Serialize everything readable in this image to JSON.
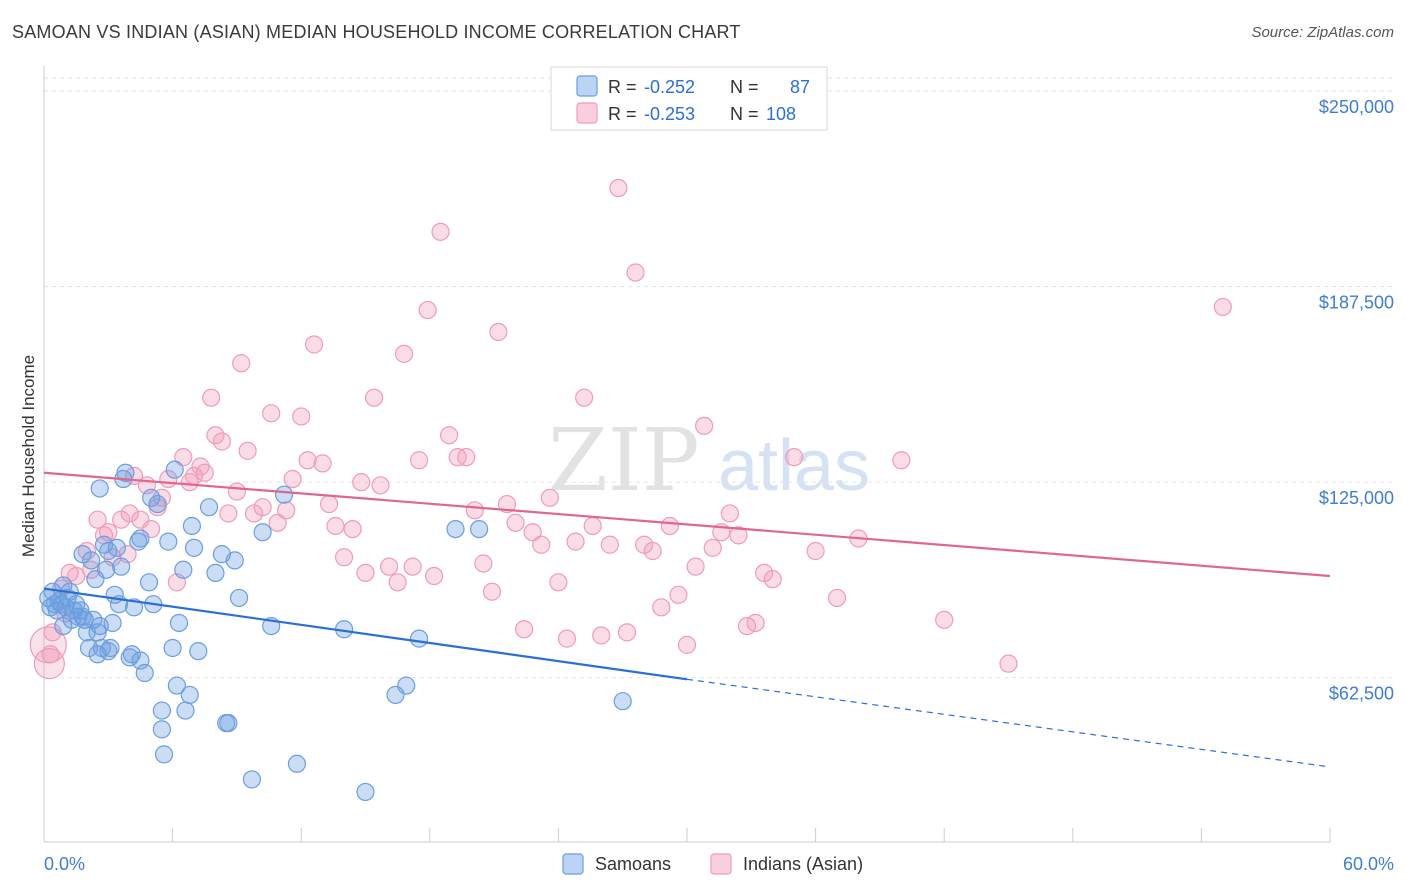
{
  "header": {
    "title": "SAMOAN VS INDIAN (ASIAN) MEDIAN HOUSEHOLD INCOME CORRELATION CHART",
    "source": "Source: ZipAtlas.com"
  },
  "colors": {
    "samoans": "#6a9ee0",
    "indians": "#f09bb8",
    "samoans_line": "#2a6fd6",
    "indians_line": "#e0668f",
    "tick_text": "#3f7dd0"
  },
  "legend": {
    "rows": [
      {
        "r_label": "R = ",
        "r_value": "-0.252",
        "n_label": "N = ",
        "n_value": "87"
      },
      {
        "r_label": "R = ",
        "r_value": "-0.253",
        "n_label": "N = ",
        "n_value": "108"
      }
    ]
  },
  "watermark": {
    "zip": "ZIP",
    "atlas": "atlas"
  },
  "chart_data": {
    "type": "scatter",
    "title": "SAMOAN VS INDIAN (ASIAN) MEDIAN HOUSEHOLD INCOME CORRELATION CHART",
    "xlabel": "",
    "ylabel": "Median Household Income",
    "xlim": [
      0,
      60
    ],
    "ylim": [
      10000,
      258000
    ],
    "x_tick_labels": [
      "0.0%",
      "60.0%"
    ],
    "y_ticks": [
      62500,
      125000,
      187500,
      250000
    ],
    "y_tick_labels": [
      "$62,500",
      "$125,000",
      "$187,500",
      "$250,000"
    ],
    "grid": true,
    "legend_position": "top-center",
    "series": [
      {
        "name": "Samoans",
        "r": -0.252,
        "n": 87,
        "trend": {
          "x0": 0,
          "y0": 91000,
          "x1": 30,
          "y1": 62000,
          "dashed_to_x": 60,
          "dashed_y": 34000
        },
        "points": [
          [
            0.2,
            88000
          ],
          [
            0.3,
            85000
          ],
          [
            0.4,
            90000
          ],
          [
            0.5,
            86000
          ],
          [
            0.6,
            84000
          ],
          [
            0.7,
            87000
          ],
          [
            0.8,
            86000
          ],
          [
            0.9,
            92000
          ],
          [
            1.0,
            85000
          ],
          [
            1.1,
            88000
          ],
          [
            1.2,
            90000
          ],
          [
            1.3,
            81000
          ],
          [
            1.4,
            84000
          ],
          [
            1.5,
            86000
          ],
          [
            1.6,
            82000
          ],
          [
            1.7,
            84000
          ],
          [
            1.8,
            82000
          ],
          [
            1.9,
            81000
          ],
          [
            2.0,
            77000
          ],
          [
            2.1,
            72000
          ],
          [
            2.2,
            100000
          ],
          [
            2.3,
            81000
          ],
          [
            2.4,
            94000
          ],
          [
            2.5,
            77000
          ],
          [
            2.6,
            79000
          ],
          [
            2.7,
            72000
          ],
          [
            2.8,
            105000
          ],
          [
            2.9,
            97000
          ],
          [
            3.0,
            103000
          ],
          [
            3.1,
            72000
          ],
          [
            3.2,
            80000
          ],
          [
            3.3,
            89000
          ],
          [
            3.4,
            104000
          ],
          [
            3.5,
            86000
          ],
          [
            3.6,
            98000
          ],
          [
            3.7,
            126000
          ],
          [
            3.8,
            128000
          ],
          [
            4.0,
            69000
          ],
          [
            4.1,
            70000
          ],
          [
            4.2,
            85000
          ],
          [
            4.4,
            106000
          ],
          [
            4.5,
            107000
          ],
          [
            4.7,
            64000
          ],
          [
            4.9,
            93000
          ],
          [
            5.0,
            120000
          ],
          [
            5.1,
            86000
          ],
          [
            5.3,
            118000
          ],
          [
            5.5,
            46000
          ],
          [
            5.6,
            38000
          ],
          [
            5.8,
            106000
          ],
          [
            6.0,
            72000
          ],
          [
            6.1,
            129000
          ],
          [
            6.2,
            60000
          ],
          [
            6.3,
            80000
          ],
          [
            6.5,
            97000
          ],
          [
            6.6,
            52000
          ],
          [
            6.8,
            57000
          ],
          [
            6.9,
            111000
          ],
          [
            7.0,
            104000
          ],
          [
            7.2,
            71000
          ],
          [
            7.7,
            117000
          ],
          [
            8.0,
            96000
          ],
          [
            8.3,
            102000
          ],
          [
            8.5,
            48000
          ],
          [
            8.6,
            48000
          ],
          [
            8.9,
            100000
          ],
          [
            9.1,
            88000
          ],
          [
            9.7,
            30000
          ],
          [
            10.2,
            109000
          ],
          [
            10.6,
            79000
          ],
          [
            11.2,
            121000
          ],
          [
            11.8,
            35000
          ],
          [
            14.0,
            78000
          ],
          [
            15.0,
            26000
          ],
          [
            16.4,
            57000
          ],
          [
            16.9,
            60000
          ],
          [
            17.5,
            75000
          ],
          [
            19.2,
            110000
          ],
          [
            20.3,
            110000
          ],
          [
            27.0,
            55000
          ],
          [
            2.5,
            70000
          ],
          [
            3.0,
            71000
          ],
          [
            4.5,
            68000
          ],
          [
            5.5,
            52000
          ],
          [
            1.8,
            102000
          ],
          [
            0.9,
            79000
          ],
          [
            2.6,
            123000
          ]
        ]
      },
      {
        "name": "Indians (Asian)",
        "r": -0.253,
        "n": 108,
        "trend": {
          "x0": 0,
          "y0": 128000,
          "x1": 60,
          "y1": 95000
        },
        "points": [
          [
            0.3,
            70000
          ],
          [
            0.4,
            77000
          ],
          [
            0.8,
            91000
          ],
          [
            1.0,
            83000
          ],
          [
            1.2,
            96000
          ],
          [
            1.5,
            95000
          ],
          [
            2.0,
            103000
          ],
          [
            2.2,
            97000
          ],
          [
            2.5,
            113000
          ],
          [
            2.8,
            108000
          ],
          [
            3.0,
            109000
          ],
          [
            3.2,
            101000
          ],
          [
            3.6,
            113000
          ],
          [
            3.9,
            102000
          ],
          [
            4.0,
            115000
          ],
          [
            4.2,
            127000
          ],
          [
            4.5,
            113000
          ],
          [
            4.8,
            124000
          ],
          [
            5.0,
            110000
          ],
          [
            5.3,
            117000
          ],
          [
            5.5,
            120000
          ],
          [
            5.8,
            126000
          ],
          [
            6.2,
            93000
          ],
          [
            6.5,
            133000
          ],
          [
            6.8,
            125000
          ],
          [
            7.0,
            127000
          ],
          [
            7.3,
            130000
          ],
          [
            7.5,
            128000
          ],
          [
            7.8,
            152000
          ],
          [
            8.0,
            140000
          ],
          [
            8.3,
            138000
          ],
          [
            8.6,
            115000
          ],
          [
            9.0,
            122000
          ],
          [
            9.2,
            163000
          ],
          [
            9.5,
            135000
          ],
          [
            9.8,
            115000
          ],
          [
            10.2,
            117000
          ],
          [
            10.6,
            147000
          ],
          [
            10.9,
            112000
          ],
          [
            11.3,
            116000
          ],
          [
            11.6,
            126000
          ],
          [
            12.0,
            146000
          ],
          [
            12.3,
            132000
          ],
          [
            12.6,
            169000
          ],
          [
            13.0,
            131000
          ],
          [
            13.3,
            118000
          ],
          [
            13.6,
            111000
          ],
          [
            14.0,
            101000
          ],
          [
            14.4,
            110000
          ],
          [
            14.8,
            125000
          ],
          [
            15.0,
            96000
          ],
          [
            15.4,
            152000
          ],
          [
            15.7,
            124000
          ],
          [
            16.1,
            98000
          ],
          [
            16.5,
            93000
          ],
          [
            16.8,
            166000
          ],
          [
            17.2,
            98000
          ],
          [
            17.5,
            132000
          ],
          [
            17.9,
            180000
          ],
          [
            18.2,
            95000
          ],
          [
            18.5,
            205000
          ],
          [
            18.9,
            140000
          ],
          [
            19.3,
            133000
          ],
          [
            19.7,
            133000
          ],
          [
            20.1,
            116000
          ],
          [
            20.5,
            99000
          ],
          [
            20.9,
            90000
          ],
          [
            21.2,
            173000
          ],
          [
            21.6,
            118000
          ],
          [
            22.0,
            112000
          ],
          [
            22.4,
            78000
          ],
          [
            22.8,
            109000
          ],
          [
            23.2,
            105000
          ],
          [
            23.6,
            120000
          ],
          [
            24.0,
            93000
          ],
          [
            24.4,
            75000
          ],
          [
            24.8,
            106000
          ],
          [
            25.2,
            152000
          ],
          [
            25.6,
            111000
          ],
          [
            26.0,
            76000
          ],
          [
            26.4,
            105000
          ],
          [
            26.8,
            219000
          ],
          [
            27.2,
            77000
          ],
          [
            27.6,
            192000
          ],
          [
            28.0,
            105000
          ],
          [
            28.4,
            103000
          ],
          [
            28.8,
            85000
          ],
          [
            29.2,
            111000
          ],
          [
            29.6,
            89000
          ],
          [
            30.0,
            73000
          ],
          [
            30.4,
            98000
          ],
          [
            30.8,
            143000
          ],
          [
            31.2,
            104000
          ],
          [
            31.6,
            109000
          ],
          [
            32.0,
            115000
          ],
          [
            32.4,
            108000
          ],
          [
            32.8,
            79000
          ],
          [
            33.2,
            80000
          ],
          [
            33.6,
            96000
          ],
          [
            34.0,
            94000
          ],
          [
            35.0,
            133000
          ],
          [
            36.0,
            103000
          ],
          [
            37.0,
            88000
          ],
          [
            38.0,
            107000
          ],
          [
            40.0,
            132000
          ],
          [
            42.0,
            81000
          ],
          [
            45.0,
            67000
          ],
          [
            55.0,
            181000
          ]
        ]
      }
    ]
  },
  "bottom_legend": {
    "items": [
      {
        "label": "Samoans"
      },
      {
        "label": "Indians (Asian)"
      }
    ]
  }
}
